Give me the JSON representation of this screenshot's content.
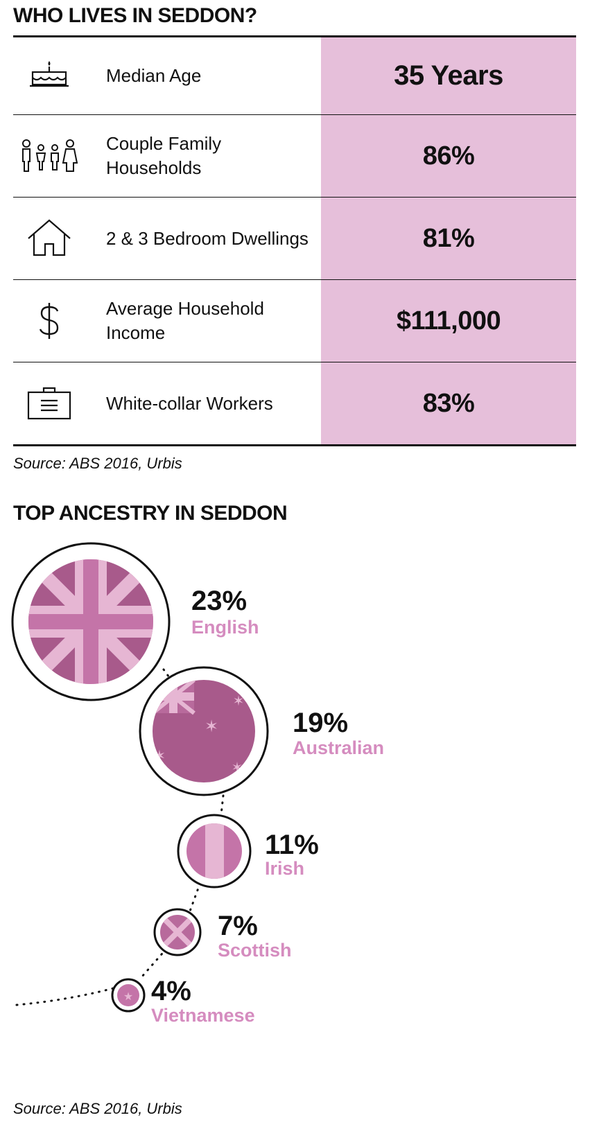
{
  "section1": {
    "title": "WHO LIVES IN SEDDON?",
    "rows": [
      {
        "icon": "birthday-cake-icon",
        "label": "Median Age",
        "value": "35 Years"
      },
      {
        "icon": "family-icon",
        "label": "Couple Family Households",
        "value": "86%"
      },
      {
        "icon": "house-icon",
        "label": "2 & 3 Bedroom Dwellings",
        "value": "81%"
      },
      {
        "icon": "dollar-icon",
        "label": "Average Household Income",
        "value": "$111,000"
      },
      {
        "icon": "briefcase-icon",
        "label": "White-collar Workers",
        "value": "83%"
      }
    ],
    "source": "Source: ABS 2016, Urbis"
  },
  "section2": {
    "title": "TOP ANCESTRY IN SEDDON",
    "source": "Source: ABS 2016, Urbis"
  },
  "colors": {
    "highlight": "#e6bfda",
    "flag_dark": "#a85a8b",
    "flag_mid": "#c474a8",
    "flag_light": "#e6b6d3",
    "label_pink": "#d58cbf",
    "ink": "#111111"
  },
  "chart_data": {
    "type": "bubble",
    "title": "TOP ANCESTRY IN SEDDON",
    "categories": [
      "English",
      "Australian",
      "Irish",
      "Scottish",
      "Vietnamese"
    ],
    "values": [
      23,
      19,
      11,
      7,
      4
    ],
    "value_labels": [
      "23%",
      "19%",
      "11%",
      "7%",
      "4%"
    ],
    "unit": "%",
    "flags": [
      "united-kingdom-flag-icon",
      "australia-flag-icon",
      "ireland-flag-icon",
      "scotland-flag-icon",
      "vietnam-flag-icon"
    ]
  }
}
